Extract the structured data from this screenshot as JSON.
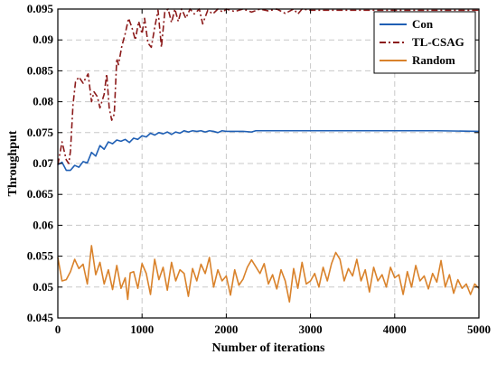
{
  "chart_data": {
    "type": "line",
    "title": "",
    "xlabel": "Number of iterations",
    "ylabel": "Throughput",
    "xlim": [
      0,
      5000
    ],
    "ylim": [
      0.045,
      0.095
    ],
    "xticks": [
      0,
      1000,
      2000,
      3000,
      4000,
      5000
    ],
    "yticks": [
      0.045,
      0.05,
      0.055,
      0.06,
      0.065,
      0.07,
      0.075,
      0.08,
      0.085,
      0.09,
      0.095
    ],
    "ytick_labels": [
      "0.045",
      "0.05",
      "0.055",
      "0.06",
      "0.065",
      "0.07",
      "0.075",
      "0.08",
      "0.085",
      "0.09",
      "0.095"
    ],
    "grid": true,
    "legend_position": "top-right",
    "series": [
      {
        "name": "Con",
        "color": "#1f5fb4",
        "style": "solid",
        "points": [
          [
            0,
            0.0698
          ],
          [
            50,
            0.0702
          ],
          [
            100,
            0.0689
          ],
          [
            150,
            0.0689
          ],
          [
            200,
            0.0697
          ],
          [
            250,
            0.0694
          ],
          [
            300,
            0.0703
          ],
          [
            350,
            0.0701
          ],
          [
            400,
            0.0718
          ],
          [
            450,
            0.0712
          ],
          [
            500,
            0.0729
          ],
          [
            550,
            0.0723
          ],
          [
            600,
            0.0735
          ],
          [
            650,
            0.0732
          ],
          [
            700,
            0.0738
          ],
          [
            750,
            0.0736
          ],
          [
            800,
            0.0739
          ],
          [
            850,
            0.0734
          ],
          [
            900,
            0.0741
          ],
          [
            950,
            0.0739
          ],
          [
            1000,
            0.0745
          ],
          [
            1050,
            0.0743
          ],
          [
            1100,
            0.0749
          ],
          [
            1150,
            0.0746
          ],
          [
            1200,
            0.075
          ],
          [
            1250,
            0.0748
          ],
          [
            1300,
            0.0751
          ],
          [
            1350,
            0.0747
          ],
          [
            1400,
            0.0751
          ],
          [
            1450,
            0.0749
          ],
          [
            1500,
            0.0753
          ],
          [
            1550,
            0.0751
          ],
          [
            1600,
            0.0753
          ],
          [
            1650,
            0.0752
          ],
          [
            1700,
            0.0753
          ],
          [
            1750,
            0.0751
          ],
          [
            1800,
            0.0753
          ],
          [
            1850,
            0.0752
          ],
          [
            1900,
            0.075
          ],
          [
            1950,
            0.0753
          ],
          [
            2000,
            0.0752
          ],
          [
            2200,
            0.0752
          ],
          [
            2300,
            0.0751
          ],
          [
            2350,
            0.0753
          ],
          [
            2500,
            0.0753
          ],
          [
            3000,
            0.0753
          ],
          [
            3500,
            0.0753
          ],
          [
            4000,
            0.0753
          ],
          [
            4500,
            0.0753
          ],
          [
            5000,
            0.0752
          ]
        ]
      },
      {
        "name": "TL-CSAG",
        "color": "#8b1a1a",
        "style": "dashdot",
        "points": [
          [
            0,
            0.0698
          ],
          [
            50,
            0.0735
          ],
          [
            100,
            0.0706
          ],
          [
            130,
            0.07
          ],
          [
            150,
            0.072
          ],
          [
            180,
            0.0795
          ],
          [
            210,
            0.0832
          ],
          [
            250,
            0.084
          ],
          [
            300,
            0.083
          ],
          [
            330,
            0.0838
          ],
          [
            360,
            0.0845
          ],
          [
            400,
            0.08
          ],
          [
            430,
            0.0816
          ],
          [
            470,
            0.0808
          ],
          [
            500,
            0.079
          ],
          [
            550,
            0.0812
          ],
          [
            580,
            0.0845
          ],
          [
            610,
            0.079
          ],
          [
            640,
            0.077
          ],
          [
            670,
            0.078
          ],
          [
            700,
            0.087
          ],
          [
            720,
            0.086
          ],
          [
            760,
            0.089
          ],
          [
            800,
            0.091
          ],
          [
            840,
            0.0935
          ],
          [
            880,
            0.092
          ],
          [
            920,
            0.09
          ],
          [
            960,
            0.093
          ],
          [
            1000,
            0.091
          ],
          [
            1030,
            0.0935
          ],
          [
            1070,
            0.0895
          ],
          [
            1110,
            0.0888
          ],
          [
            1150,
            0.092
          ],
          [
            1190,
            0.0948
          ],
          [
            1230,
            0.0888
          ],
          [
            1270,
            0.0945
          ],
          [
            1310,
            0.095
          ],
          [
            1350,
            0.0928
          ],
          [
            1390,
            0.095
          ],
          [
            1430,
            0.093
          ],
          [
            1470,
            0.095
          ],
          [
            1520,
            0.0935
          ],
          [
            1570,
            0.095
          ],
          [
            1620,
            0.0942
          ],
          [
            1680,
            0.095
          ],
          [
            1720,
            0.0926
          ],
          [
            1780,
            0.0948
          ],
          [
            1840,
            0.0942
          ],
          [
            1900,
            0.095
          ],
          [
            1960,
            0.0945
          ],
          [
            2000,
            0.095
          ],
          [
            2100,
            0.0946
          ],
          [
            2200,
            0.095
          ],
          [
            2300,
            0.0945
          ],
          [
            2400,
            0.095
          ],
          [
            2500,
            0.0947
          ],
          [
            2600,
            0.095
          ],
          [
            2700,
            0.0943
          ],
          [
            2800,
            0.095
          ],
          [
            2850,
            0.0942
          ],
          [
            2900,
            0.095
          ],
          [
            3000,
            0.0948
          ],
          [
            3500,
            0.0948
          ],
          [
            4000,
            0.0948
          ],
          [
            4500,
            0.0948
          ],
          [
            5000,
            0.0948
          ]
        ]
      },
      {
        "name": "Random",
        "color": "#d9822b",
        "style": "solid",
        "points": [
          [
            0,
            0.0548
          ],
          [
            50,
            0.051
          ],
          [
            100,
            0.0512
          ],
          [
            150,
            0.0525
          ],
          [
            200,
            0.0545
          ],
          [
            250,
            0.053
          ],
          [
            300,
            0.0537
          ],
          [
            350,
            0.0505
          ],
          [
            400,
            0.0567
          ],
          [
            450,
            0.052
          ],
          [
            500,
            0.054
          ],
          [
            550,
            0.0505
          ],
          [
            600,
            0.0528
          ],
          [
            650,
            0.0496
          ],
          [
            700,
            0.0535
          ],
          [
            750,
            0.0498
          ],
          [
            800,
            0.0515
          ],
          [
            830,
            0.048
          ],
          [
            860,
            0.0523
          ],
          [
            900,
            0.0525
          ],
          [
            950,
            0.0498
          ],
          [
            1000,
            0.0538
          ],
          [
            1050,
            0.0522
          ],
          [
            1100,
            0.0488
          ],
          [
            1150,
            0.0545
          ],
          [
            1200,
            0.0512
          ],
          [
            1250,
            0.0532
          ],
          [
            1300,
            0.0495
          ],
          [
            1350,
            0.054
          ],
          [
            1400,
            0.051
          ],
          [
            1450,
            0.0528
          ],
          [
            1500,
            0.0522
          ],
          [
            1550,
            0.0485
          ],
          [
            1600,
            0.053
          ],
          [
            1650,
            0.051
          ],
          [
            1700,
            0.0537
          ],
          [
            1750,
            0.0522
          ],
          [
            1800,
            0.0548
          ],
          [
            1850,
            0.05
          ],
          [
            1900,
            0.0528
          ],
          [
            1950,
            0.051
          ],
          [
            2000,
            0.0518
          ],
          [
            2050,
            0.0487
          ],
          [
            2100,
            0.0528
          ],
          [
            2150,
            0.0503
          ],
          [
            2200,
            0.0513
          ],
          [
            2250,
            0.0532
          ],
          [
            2300,
            0.0544
          ],
          [
            2350,
            0.0533
          ],
          [
            2400,
            0.0522
          ],
          [
            2450,
            0.0538
          ],
          [
            2500,
            0.0505
          ],
          [
            2550,
            0.052
          ],
          [
            2600,
            0.0497
          ],
          [
            2650,
            0.0528
          ],
          [
            2700,
            0.051
          ],
          [
            2750,
            0.0476
          ],
          [
            2800,
            0.053
          ],
          [
            2850,
            0.0498
          ],
          [
            2900,
            0.054
          ],
          [
            2950,
            0.0505
          ],
          [
            3000,
            0.051
          ],
          [
            3050,
            0.0522
          ],
          [
            3100,
            0.05
          ],
          [
            3150,
            0.0532
          ],
          [
            3200,
            0.051
          ],
          [
            3250,
            0.0538
          ],
          [
            3300,
            0.0556
          ],
          [
            3350,
            0.0545
          ],
          [
            3400,
            0.051
          ],
          [
            3450,
            0.053
          ],
          [
            3500,
            0.0518
          ],
          [
            3550,
            0.0545
          ],
          [
            3600,
            0.051
          ],
          [
            3650,
            0.0528
          ],
          [
            3700,
            0.0492
          ],
          [
            3750,
            0.0532
          ],
          [
            3800,
            0.051
          ],
          [
            3850,
            0.052
          ],
          [
            3900,
            0.05
          ],
          [
            3950,
            0.0532
          ],
          [
            4000,
            0.0515
          ],
          [
            4050,
            0.052
          ],
          [
            4100,
            0.0488
          ],
          [
            4150,
            0.0525
          ],
          [
            4200,
            0.05
          ],
          [
            4250,
            0.0535
          ],
          [
            4300,
            0.051
          ],
          [
            4350,
            0.0518
          ],
          [
            4400,
            0.0497
          ],
          [
            4450,
            0.0522
          ],
          [
            4500,
            0.0508
          ],
          [
            4550,
            0.0543
          ],
          [
            4600,
            0.05
          ],
          [
            4650,
            0.052
          ],
          [
            4700,
            0.049
          ],
          [
            4750,
            0.0512
          ],
          [
            4800,
            0.0498
          ],
          [
            4850,
            0.0505
          ],
          [
            4900,
            0.0488
          ],
          [
            4950,
            0.0505
          ],
          [
            5000,
            0.0498
          ]
        ]
      }
    ]
  }
}
